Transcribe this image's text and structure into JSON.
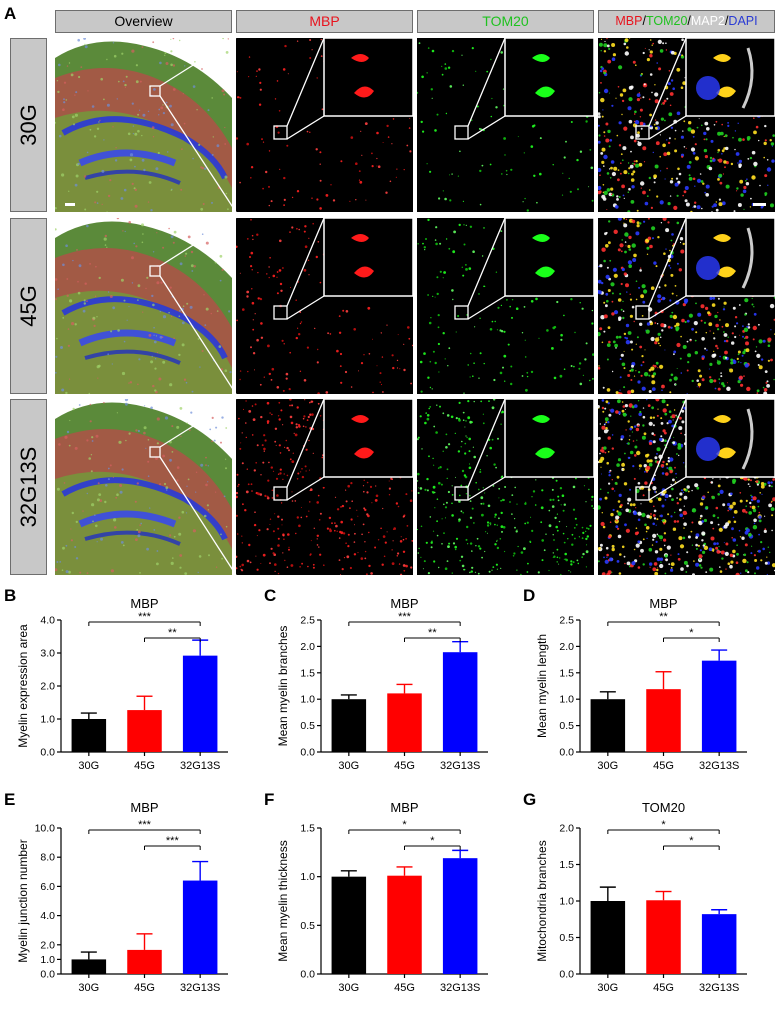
{
  "panel_a": {
    "letter": "A",
    "columns": [
      {
        "key": "overview",
        "label": "Overview",
        "color": "#000000"
      },
      {
        "key": "mbp",
        "label": "MBP",
        "color": "#e8141e"
      },
      {
        "key": "tom20",
        "label": "TOM20",
        "color": "#1fc21f"
      },
      {
        "key": "merge",
        "label_parts": [
          {
            "text": "MBP",
            "color": "#e8141e"
          },
          {
            "text": "/",
            "color": "#000000"
          },
          {
            "text": "TOM20",
            "color": "#1fc21f"
          },
          {
            "text": "/",
            "color": "#000000"
          },
          {
            "text": "MAP2",
            "color": "#ffffff"
          },
          {
            "text": "/",
            "color": "#000000"
          },
          {
            "text": "DAPI",
            "color": "#2a3bd4"
          }
        ]
      }
    ],
    "rows": [
      {
        "label": "30G"
      },
      {
        "label": "45G"
      },
      {
        "label": "32G13S"
      }
    ]
  },
  "chart_data": [
    {
      "panel": "B",
      "type": "bar",
      "title": "MBP",
      "ylabel": "Myelin expression area",
      "categories": [
        "30G",
        "45G",
        "32G13S"
      ],
      "values": [
        1.0,
        1.27,
        2.92
      ],
      "errors": [
        0.18,
        0.42,
        0.47
      ],
      "colors": [
        "#000000",
        "#ff0000",
        "#0000ff"
      ],
      "ylim": [
        0,
        4.0
      ],
      "yticks": [
        0,
        1,
        2,
        3,
        4
      ],
      "ytick_labels": [
        "0.0",
        "1.0",
        "2.0",
        "3.0",
        "4.0"
      ],
      "significance": [
        {
          "from": 0,
          "to": 2,
          "label": "***"
        },
        {
          "from": 1,
          "to": 2,
          "label": "**"
        }
      ]
    },
    {
      "panel": "C",
      "type": "bar",
      "title": "MBP",
      "ylabel": "Mean myelin branches",
      "categories": [
        "30G",
        "45G",
        "32G13S"
      ],
      "values": [
        1.0,
        1.11,
        1.89
      ],
      "errors": [
        0.08,
        0.17,
        0.2
      ],
      "colors": [
        "#000000",
        "#ff0000",
        "#0000ff"
      ],
      "ylim": [
        0,
        2.5
      ],
      "yticks": [
        0,
        0.5,
        1,
        1.5,
        2,
        2.5
      ],
      "ytick_labels": [
        "0.0",
        "0.5",
        "1.0",
        "1.5",
        "2.0",
        "2.5"
      ],
      "significance": [
        {
          "from": 0,
          "to": 2,
          "label": "***"
        },
        {
          "from": 1,
          "to": 2,
          "label": "**"
        }
      ]
    },
    {
      "panel": "D",
      "type": "bar",
      "title": "MBP",
      "ylabel": "Mean myelin length",
      "categories": [
        "30G",
        "45G",
        "32G13S"
      ],
      "values": [
        1.0,
        1.19,
        1.73
      ],
      "errors": [
        0.14,
        0.33,
        0.2
      ],
      "colors": [
        "#000000",
        "#ff0000",
        "#0000ff"
      ],
      "ylim": [
        0,
        2.5
      ],
      "yticks": [
        0,
        0.5,
        1,
        1.5,
        2,
        2.5
      ],
      "ytick_labels": [
        "0.0",
        "0.5",
        "1.0",
        "1.5",
        "2.0",
        "2.5"
      ],
      "significance": [
        {
          "from": 0,
          "to": 2,
          "label": "**"
        },
        {
          "from": 1,
          "to": 2,
          "label": "*"
        }
      ]
    },
    {
      "panel": "E",
      "type": "bar",
      "title": "MBP",
      "ylabel": "Myelin junction number",
      "categories": [
        "30G",
        "45G",
        "32G13S"
      ],
      "values": [
        1.0,
        1.65,
        6.4
      ],
      "errors": [
        0.5,
        1.1,
        1.3
      ],
      "colors": [
        "#000000",
        "#ff0000",
        "#0000ff"
      ],
      "ylim": [
        0,
        10.0
      ],
      "yticks": [
        0,
        1,
        2,
        4,
        6,
        8,
        10
      ],
      "ytick_labels": [
        "0.0",
        "1.0",
        "2.0",
        "4.0",
        "6.0",
        "8.0",
        "10.0"
      ],
      "significance": [
        {
          "from": 0,
          "to": 2,
          "label": "***"
        },
        {
          "from": 1,
          "to": 2,
          "label": "***"
        }
      ]
    },
    {
      "panel": "F",
      "type": "bar",
      "title": "MBP",
      "ylabel": "Mean myelin thickness",
      "categories": [
        "30G",
        "45G",
        "32G13S"
      ],
      "values": [
        1.0,
        1.01,
        1.19
      ],
      "errors": [
        0.06,
        0.09,
        0.08
      ],
      "colors": [
        "#000000",
        "#ff0000",
        "#0000ff"
      ],
      "ylim": [
        0,
        1.5
      ],
      "yticks": [
        0,
        0.5,
        1,
        1.5
      ],
      "ytick_labels": [
        "0.0",
        "0.5",
        "1.0",
        "1.5"
      ],
      "significance": [
        {
          "from": 0,
          "to": 2,
          "label": "*"
        },
        {
          "from": 1,
          "to": 2,
          "label": "*"
        }
      ]
    },
    {
      "panel": "G",
      "type": "bar",
      "title": "TOM20",
      "ylabel": "Mitochondria branches",
      "categories": [
        "30G",
        "45G",
        "32G13S"
      ],
      "values": [
        1.0,
        1.01,
        0.82
      ],
      "errors": [
        0.19,
        0.12,
        0.06
      ],
      "colors": [
        "#000000",
        "#ff0000",
        "#0000ff"
      ],
      "ylim": [
        0,
        2.0
      ],
      "yticks": [
        0,
        0.5,
        1,
        1.5,
        2
      ],
      "ytick_labels": [
        "0.0",
        "0.5",
        "1.0",
        "1.5",
        "2.0"
      ],
      "significance": [
        {
          "from": 0,
          "to": 2,
          "label": "*"
        },
        {
          "from": 1,
          "to": 2,
          "label": "*"
        }
      ]
    }
  ]
}
